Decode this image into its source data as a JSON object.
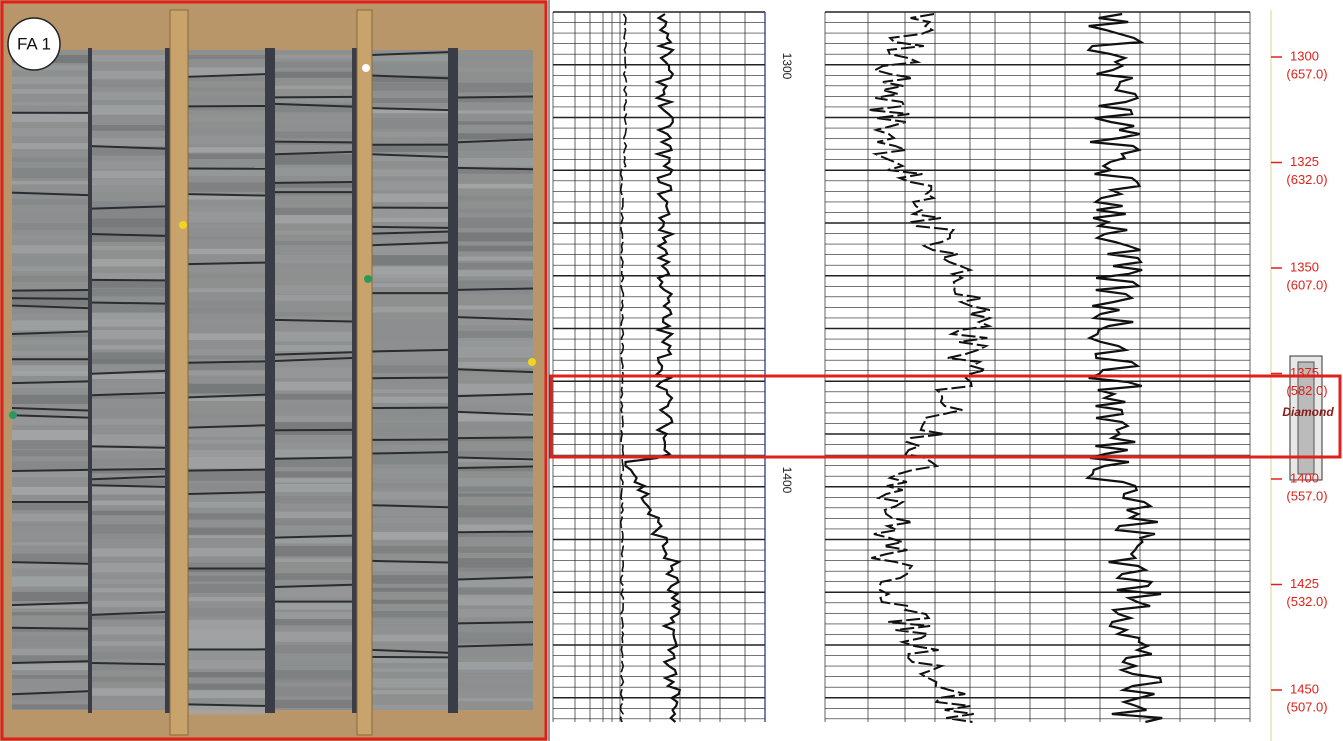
{
  "panel_label": "FA 1",
  "log_depth_labels": [
    "1300",
    "1400"
  ],
  "depth_scale": [
    {
      "depth": "1300",
      "elevation": "(657.0)"
    },
    {
      "depth": "1325",
      "elevation": "(632.0)"
    },
    {
      "depth": "1350",
      "elevation": "(607.0)"
    },
    {
      "depth": "1375",
      "elevation": "(582.0)"
    },
    {
      "depth": "1400",
      "elevation": "(557.0)"
    },
    {
      "depth": "1425",
      "elevation": "(532.0)"
    },
    {
      "depth": "1450",
      "elevation": "(507.0)"
    }
  ],
  "core_label": "Diamond"
}
